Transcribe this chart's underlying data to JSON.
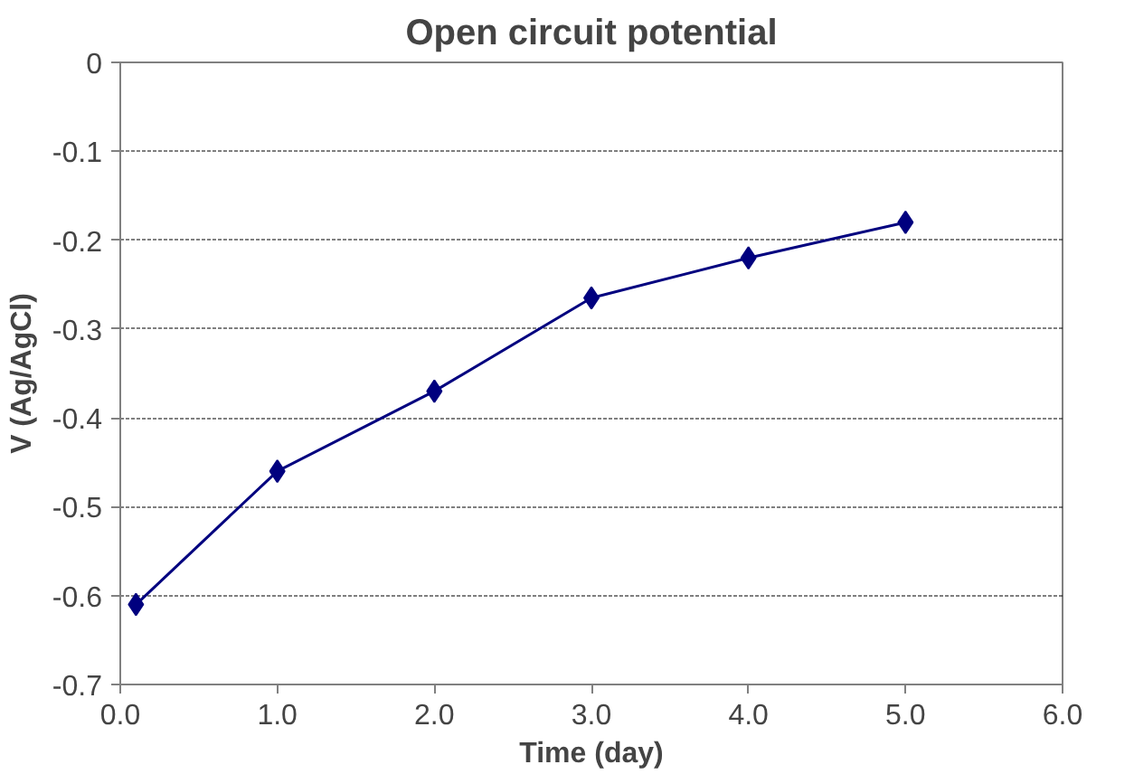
{
  "chart_data": {
    "type": "line",
    "title": "Open circuit potential",
    "xlabel": "Time (day)",
    "ylabel": "V (Ag/AgCl)",
    "x": [
      0.1,
      1.0,
      2.0,
      3.0,
      4.0,
      5.0
    ],
    "series": [
      {
        "color": "#00007f",
        "values": [
          -0.61,
          -0.46,
          -0.37,
          -0.265,
          -0.22,
          -0.18
        ]
      }
    ],
    "xlim": [
      0,
      6
    ],
    "xticks": [
      {
        "value": 0,
        "label": "0.0"
      },
      {
        "value": 1,
        "label": "1.0"
      },
      {
        "value": 2,
        "label": "2.0"
      },
      {
        "value": 3,
        "label": "3.0"
      },
      {
        "value": 4,
        "label": "4.0"
      },
      {
        "value": 5,
        "label": "5.0"
      },
      {
        "value": 6,
        "label": "6.0"
      }
    ],
    "ylim": [
      -0.7,
      0
    ],
    "yticks": [
      -0.7,
      -0.6,
      -0.5,
      -0.4,
      -0.3,
      -0.2,
      -0.1,
      0
    ],
    "grid": "y",
    "marker": "diamond",
    "line_style": "solid"
  }
}
